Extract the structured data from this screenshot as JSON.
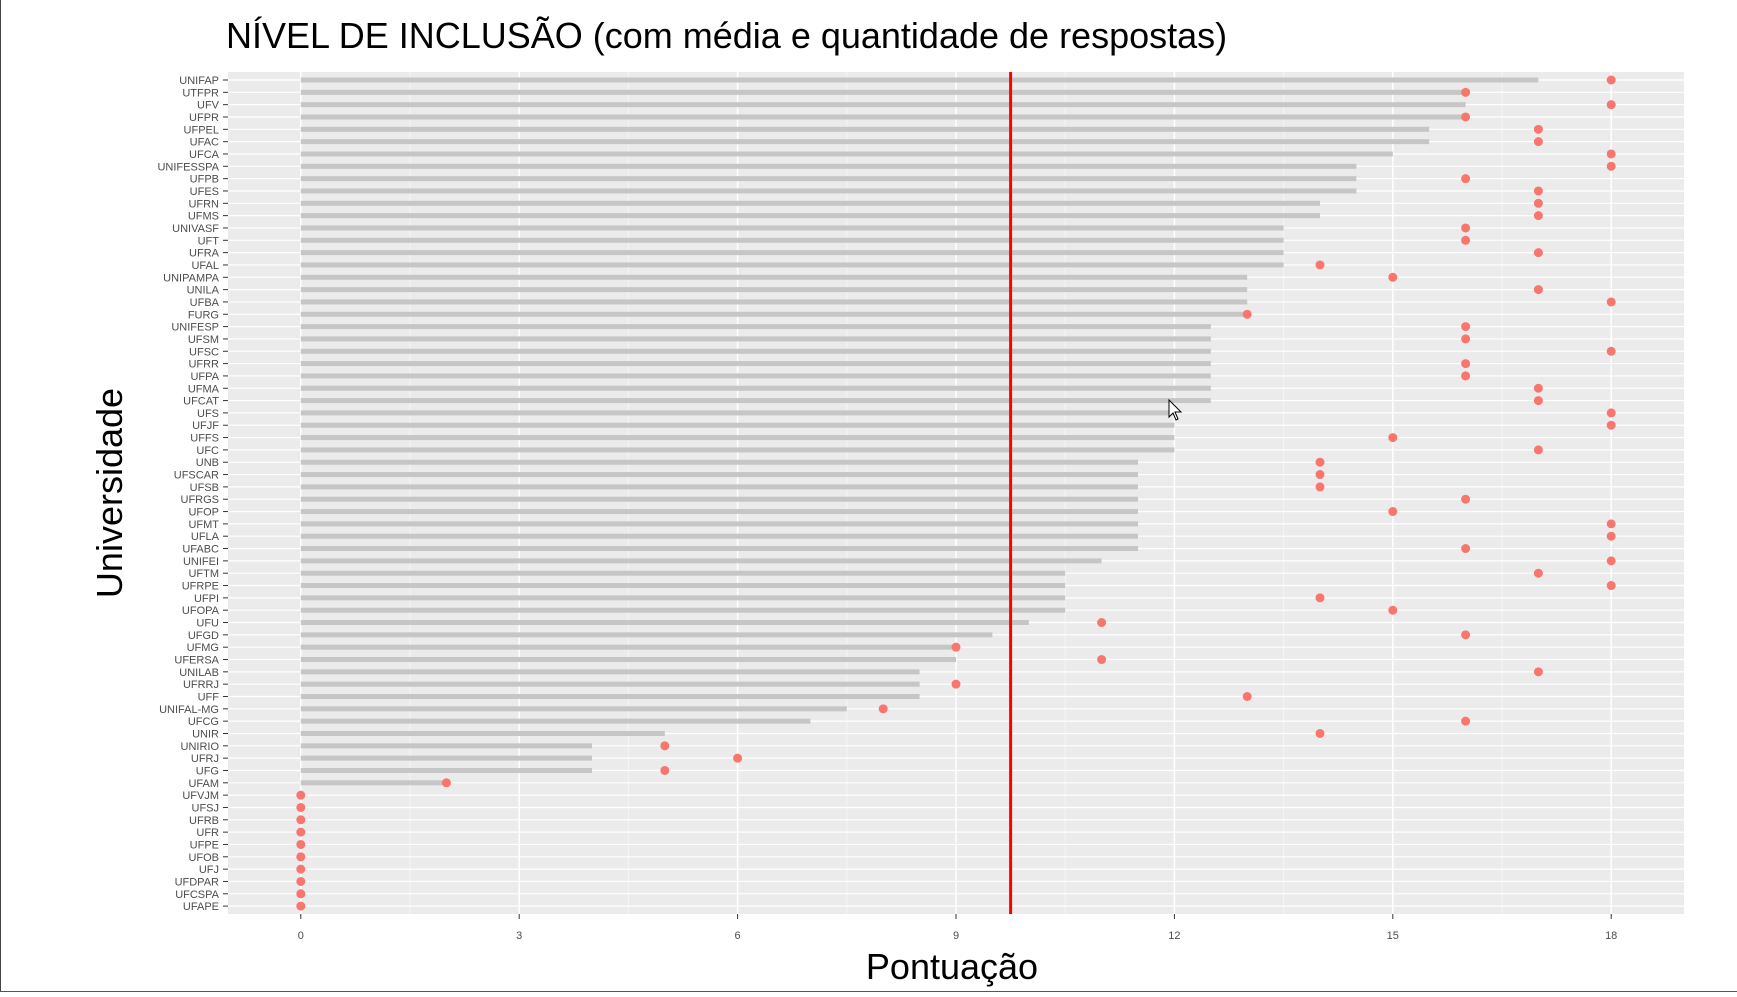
{
  "chart_data": {
    "type": "bar",
    "title": "NÍVEL DE INCLUSÃO (com média e quantidade de respostas)",
    "xlabel": "Pontuação",
    "ylabel": "Universidade",
    "xlim": [
      -1,
      19
    ],
    "xticks": [
      0,
      3,
      6,
      9,
      12,
      15,
      18
    ],
    "grid": true,
    "legend": "none",
    "reference_line": 9.75,
    "categories": [
      "UNIFAP",
      "UTFPR",
      "UFV",
      "UFPR",
      "UFPEL",
      "UFAC",
      "UFCA",
      "UNIFESSPA",
      "UFPB",
      "UFES",
      "UFRN",
      "UFMS",
      "UNIVASF",
      "UFT",
      "UFRA",
      "UFAL",
      "UNIPAMPA",
      "UNILA",
      "UFBA",
      "FURG",
      "UNIFESP",
      "UFSM",
      "UFSC",
      "UFRR",
      "UFPA",
      "UFMA",
      "UFCAT",
      "UFS",
      "UFJF",
      "UFFS",
      "UFC",
      "UNB",
      "UFSCAR",
      "UFSB",
      "UFRGS",
      "UFOP",
      "UFMT",
      "UFLA",
      "UFABC",
      "UNIFEI",
      "UFTM",
      "UFRPE",
      "UFPI",
      "UFOPA",
      "UFU",
      "UFGD",
      "UFMG",
      "UFERSA",
      "UNILAB",
      "UFRRJ",
      "UFF",
      "UNIFAL-MG",
      "UFCG",
      "UNIR",
      "UNIRIO",
      "UFRJ",
      "UFG",
      "UFAM",
      "UFVJM",
      "UFSJ",
      "UFRB",
      "UFR",
      "UFPE",
      "UFOB",
      "UFJ",
      "UFDPAR",
      "UFCSPA",
      "UFAPE"
    ],
    "series": [
      {
        "mark": "bar",
        "values": [
          17,
          16,
          16,
          16,
          15.5,
          15.5,
          15,
          14.5,
          14.5,
          14.5,
          14,
          14,
          13.5,
          13.5,
          13.5,
          13.5,
          13,
          13,
          13,
          13,
          12.5,
          12.5,
          12.5,
          12.5,
          12.5,
          12.5,
          12.5,
          12,
          12,
          12,
          12,
          11.5,
          11.5,
          11.5,
          11.5,
          11.5,
          11.5,
          11.5,
          11.5,
          11,
          10.5,
          10.5,
          10.5,
          10.5,
          10,
          9.5,
          9,
          9,
          8.5,
          8.5,
          8.5,
          7.5,
          7,
          5,
          4,
          4,
          4,
          2,
          0,
          0,
          0,
          0,
          0,
          0,
          0,
          0,
          0,
          0
        ]
      },
      {
        "mark": "point",
        "values": [
          18,
          16,
          18,
          16,
          17,
          17,
          18,
          18,
          16,
          17,
          17,
          17,
          16,
          16,
          17,
          14,
          15,
          17,
          18,
          13,
          16,
          16,
          18,
          16,
          16,
          17,
          17,
          18,
          18,
          15,
          17,
          14,
          14,
          14,
          16,
          15,
          18,
          18,
          16,
          18,
          17,
          18,
          14,
          15,
          11,
          16,
          9,
          11,
          17,
          9,
          13,
          8,
          16,
          14,
          5,
          6,
          5,
          2,
          0,
          0,
          0,
          0,
          0,
          0,
          0,
          0,
          0,
          0
        ]
      }
    ]
  },
  "colors": {
    "panel": "#ebebeb",
    "grid_major": "#ffffff",
    "bar": "#c6c6c6",
    "point": "#f8766d",
    "reference_line": "#ff0000",
    "tick_text": "#4d4d4d",
    "title": "#000000"
  }
}
